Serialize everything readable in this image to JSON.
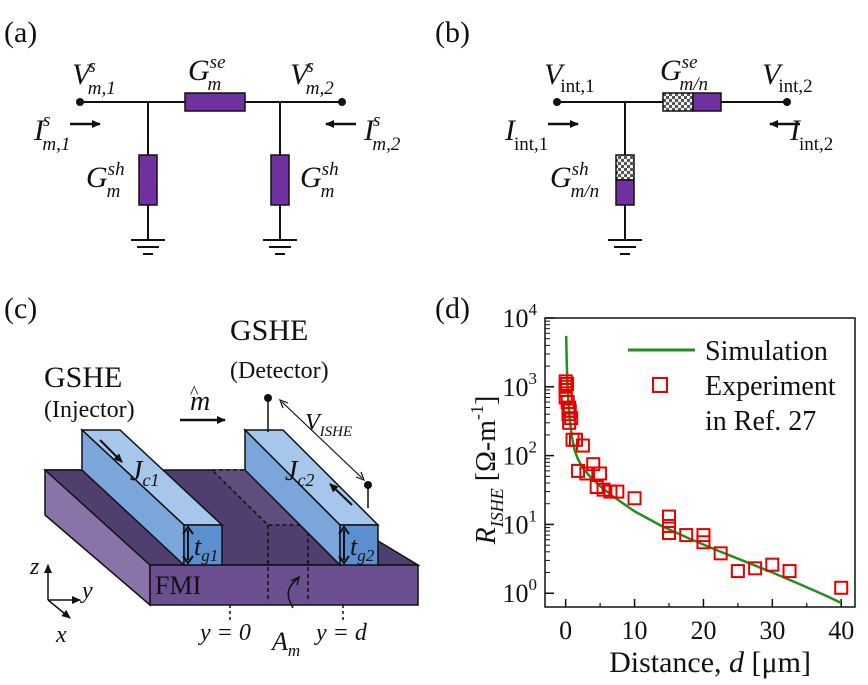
{
  "colors": {
    "resistor": "#7030a0",
    "checker_dark": "#555555",
    "checker_light": "#f2f2f2",
    "bar_front": "#5b8fd0",
    "bar_top": "#a7c6ec",
    "slab_front": "#6b4f8f",
    "slab_top": "#4f3f6e",
    "sim_line": "#1f8f1f",
    "exp_marker": "#e60000"
  },
  "panels": {
    "a": {
      "letter": "(a)",
      "v1": {
        "base": "V",
        "sup": "s",
        "sub": "m,1"
      },
      "v2": {
        "base": "V",
        "sup": "s",
        "sub": "m,2"
      },
      "i1": {
        "base": "I",
        "sup": "s",
        "sub": "m,1"
      },
      "i2": {
        "base": "I",
        "sup": "s",
        "sub": "m,2"
      },
      "gse": {
        "base": "G",
        "sup": "se",
        "sub": "m"
      },
      "gsh_left": {
        "base": "G",
        "sup": "sh",
        "sub": "m"
      },
      "gsh_right": {
        "base": "G",
        "sup": "sh",
        "sub": "m"
      }
    },
    "b": {
      "letter": "(b)",
      "v1": {
        "base": "V",
        "sub": "int,1"
      },
      "v2": {
        "base": "V",
        "sub": "int,2"
      },
      "i1": {
        "base": "I",
        "sub": "int,1"
      },
      "i2": {
        "base": "I",
        "sub": "int,2"
      },
      "gse": {
        "base": "G",
        "sup": "se",
        "sub": "m/n"
      },
      "gsh": {
        "base": "G",
        "sup": "sh",
        "sub": "m/n"
      }
    },
    "c": {
      "letter": "(c)",
      "injector_title": "GSHE",
      "injector_sub": "(Injector)",
      "detector_title": "GSHE",
      "detector_sub": "(Detector)",
      "m_hat": "m",
      "v_ishe": {
        "base": "V",
        "sub": "ISHE"
      },
      "jc1": {
        "base": "J",
        "sub": "c1"
      },
      "jc2": {
        "base": "J",
        "sub": "c2"
      },
      "tg1": {
        "base": "t",
        "sub": "g1"
      },
      "tg2": {
        "base": "t",
        "sub": "g2"
      },
      "fmi": "FMI",
      "y0": "y = 0",
      "yd": "y = d",
      "am": {
        "base": "A",
        "sub": "m"
      },
      "axis_z": "z",
      "axis_y": "y",
      "axis_x": "x"
    },
    "d": {
      "letter": "(d)"
    }
  },
  "chart_data": {
    "type": "scatter",
    "xlabel": "Distance, d [μm]",
    "ylabel": "R_ISHE [Ω-m⁻¹]",
    "ylabel_parts": {
      "base": "R",
      "sub": "ISHE",
      "unit": "[Ω-m",
      "exp": "-1",
      "close": "]"
    },
    "xlabel_parts": {
      "pre": "Distance, ",
      "var": "d",
      "post": " [μm]"
    },
    "xlim": [
      -3,
      42
    ],
    "ylim_log10": [
      -0.2,
      4.0
    ],
    "y_scale": "log",
    "x_ticks": [
      0,
      10,
      20,
      30,
      40
    ],
    "y_ticks_exp": [
      0,
      1,
      2,
      3,
      4
    ],
    "legend_position": "top-right",
    "series": [
      {
        "name": "Simulation",
        "kind": "line",
        "x": [
          0.08,
          0.15,
          0.25,
          0.4,
          0.6,
          0.9,
          1.3,
          1.8,
          2.5,
          3.5,
          5,
          7,
          10,
          14,
          18,
          22,
          26,
          30,
          34,
          38,
          40
        ],
        "y": [
          5500,
          2400,
          1150,
          600,
          330,
          190,
          120,
          88,
          66,
          50,
          36,
          25,
          15.5,
          9.4,
          6.2,
          4.2,
          2.9,
          2.0,
          1.35,
          0.9,
          0.72
        ]
      },
      {
        "name": "Experiment in Ref. 27",
        "name_lines": [
          "Experiment",
          "in Ref. 27"
        ],
        "kind": "scatter",
        "marker": "open-square",
        "x": [
          0,
          0,
          0,
          0,
          0.2,
          0.3,
          0.4,
          0.5,
          0.5,
          0.6,
          0.8,
          1,
          1.5,
          1.8,
          2.5,
          3,
          4,
          4.5,
          5,
          5.5,
          6.5,
          7.5,
          10,
          15,
          15,
          15,
          17.5,
          20,
          20,
          22.5,
          25,
          27.5,
          30,
          32.5,
          40
        ],
        "y": [
          1200,
          1000,
          900,
          700,
          1100,
          600,
          400,
          300,
          500,
          450,
          350,
          170,
          170,
          60,
          140,
          55,
          75,
          35,
          55,
          32,
          30,
          30,
          24,
          13,
          9.5,
          7.5,
          7,
          7,
          5.5,
          3.8,
          2.1,
          2.3,
          2.6,
          2.1,
          1.2
        ]
      }
    ]
  }
}
